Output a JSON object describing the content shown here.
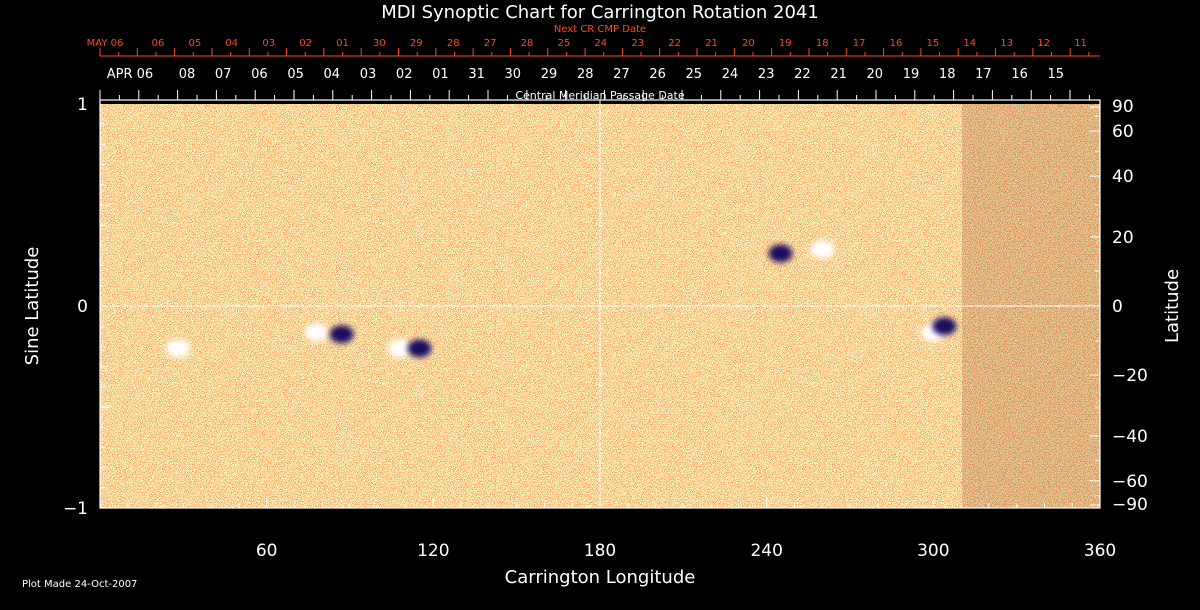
{
  "chart_data": {
    "type": "heatmap",
    "title": "MDI Synoptic Chart for Carrington Rotation 2041",
    "xlabel": "Carrington Longitude",
    "ylabel_left": "Sine Latitude",
    "ylabel_right": "Latitude",
    "xlim": [
      0,
      360
    ],
    "ylim": [
      -1,
      1
    ],
    "x_ticks": [
      "60",
      "120",
      "180",
      "240",
      "300",
      "360"
    ],
    "y_ticks_left": [
      "1",
      "0",
      "−1"
    ],
    "y_ticks_right": [
      "90",
      "60",
      "40",
      "20",
      "0",
      "−20",
      "−40",
      "−60",
      "−90"
    ],
    "cmp_axis_label": "Central Meridian Passage Date",
    "cmp_dates": [
      "APR 06",
      "08",
      "07",
      "06",
      "05",
      "04",
      "03",
      "02",
      "01",
      "31",
      "30",
      "29",
      "28",
      "27",
      "26",
      "25",
      "24",
      "23",
      "22",
      "21",
      "20",
      "19",
      "18",
      "17",
      "16",
      "15"
    ],
    "next_cr_axis_label": "Next CR CMP Date",
    "next_cr_dates": [
      "MAY 06",
      "06",
      "05",
      "04",
      "03",
      "02",
      "01",
      "30",
      "29",
      "28",
      "27",
      "28",
      "25",
      "24",
      "23",
      "22",
      "21",
      "20",
      "19",
      "18",
      "17",
      "16",
      "15",
      "14",
      "13",
      "12",
      "11"
    ],
    "colors": {
      "background": "#000000",
      "axes": "#ffffff",
      "next_cr": "#ff4a1a",
      "map_base": "#ff6a10",
      "positive_polarity": "#ffffff",
      "negative_polarity": "#1a1060"
    },
    "active_regions": [
      {
        "lon": 78,
        "sinlat": -0.13,
        "polarity": "positive"
      },
      {
        "lon": 87,
        "sinlat": -0.14,
        "polarity": "negative"
      },
      {
        "lon": 108,
        "sinlat": -0.21,
        "polarity": "positive"
      },
      {
        "lon": 115,
        "sinlat": -0.21,
        "polarity": "negative"
      },
      {
        "lon": 28,
        "sinlat": -0.21,
        "polarity": "positive"
      },
      {
        "lon": 300,
        "sinlat": -0.13,
        "polarity": "positive"
      },
      {
        "lon": 304,
        "sinlat": -0.1,
        "polarity": "negative"
      },
      {
        "lon": 245,
        "sinlat": 0.26,
        "polarity": "negative"
      },
      {
        "lon": 260,
        "sinlat": 0.28,
        "polarity": "positive"
      }
    ]
  },
  "footer": {
    "plot_made": "Plot Made 24-Oct-2007"
  }
}
